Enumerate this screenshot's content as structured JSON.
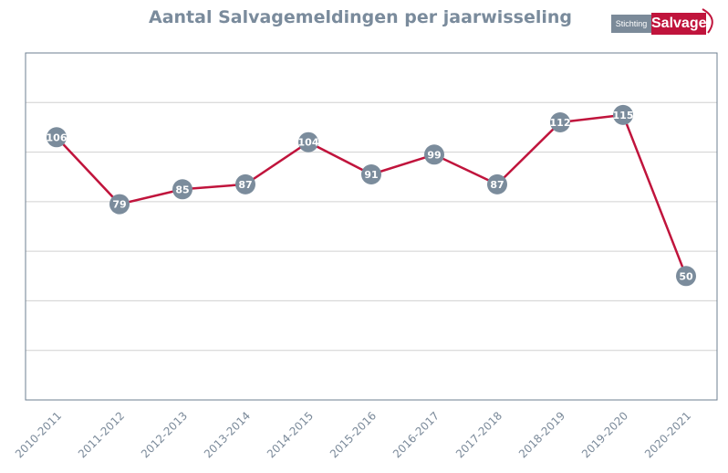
{
  "chart_data": {
    "type": "line",
    "title": "Aantal Salvagemeldingen per jaarwisseling",
    "categories": [
      "2010-2011",
      "2011-2012",
      "2012-2013",
      "2013-2014",
      "2014-2015",
      "2015-2016",
      "2016-2017",
      "2017-2018",
      "2018-2019",
      "2019-2020",
      "2020-2021"
    ],
    "series": [
      {
        "values": [
          106,
          79,
          85,
          87,
          104,
          91,
          99,
          87,
          112,
          115,
          50
        ]
      }
    ],
    "ylim": [
      0,
      140
    ],
    "grid": true,
    "colors": {
      "line": "#c0143c",
      "marker": "#7b8c9c",
      "grid": "#d0d0d0",
      "axis": "#6e7f90"
    }
  },
  "logo": {
    "small": "Stichting",
    "brand": "Salvage"
  }
}
